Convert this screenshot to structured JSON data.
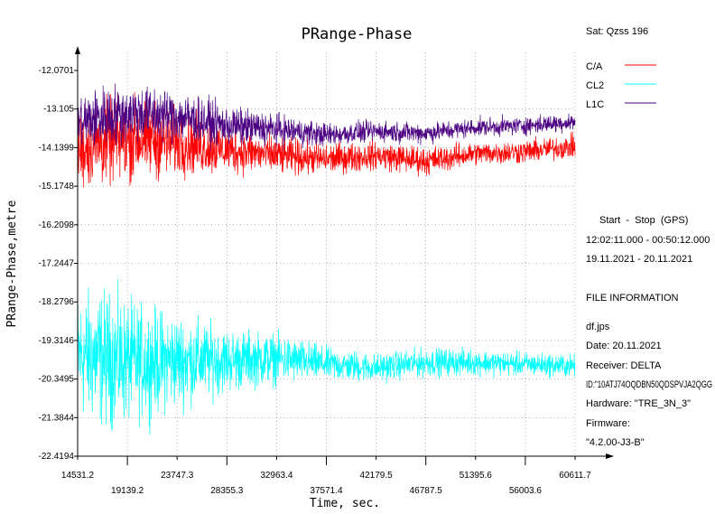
{
  "chart_data": {
    "type": "line",
    "title": "PRange-Phase",
    "xlabel": "Time, sec.",
    "ylabel": "PRange-Phase,metre",
    "xlim": [
      14531.2,
      60611.7
    ],
    "ylim": [
      -22.4194,
      -12.0701
    ],
    "x_ticks_upper": [
      "14531.2",
      "23747.3",
      "32963.4",
      "42179.5",
      "51395.6",
      "60611.7"
    ],
    "x_ticks_lower": [
      "19139.2",
      "28355.3",
      "37571.4",
      "46787.5",
      "56003.6"
    ],
    "y_ticks": [
      "-12.0701",
      "-13.105",
      "-14.1399",
      "-15.1748",
      "-16.2098",
      "-17.2447",
      "-18.2796",
      "-19.3146",
      "-20.3495",
      "-21.3844",
      "-22.4194"
    ],
    "grid": true,
    "legend_position": "top-right",
    "series": [
      {
        "name": "C/A",
        "color": "#ff0000",
        "x": [
          14531.2,
          17000,
          20000,
          23747.3,
          28355.3,
          32963.4,
          37571.4,
          42179.5,
          46787.5,
          51395.6,
          56003.6,
          60611.7
        ],
        "center": [
          -14.2,
          -14.0,
          -13.9,
          -14.0,
          -14.2,
          -14.35,
          -14.45,
          -14.35,
          -14.5,
          -14.3,
          -14.25,
          -14.1
        ],
        "amplitude": [
          1.5,
          1.6,
          1.6,
          1.3,
          0.9,
          0.75,
          0.6,
          0.55,
          0.55,
          0.45,
          0.45,
          0.45
        ]
      },
      {
        "name": "CL2",
        "color": "#00ffff",
        "x": [
          14531.2,
          17000,
          20000,
          23747.3,
          28355.3,
          32963.4,
          37571.4,
          42179.5,
          46787.5,
          51395.6,
          56003.6,
          60611.7
        ],
        "center": [
          -19.7,
          -19.8,
          -19.9,
          -19.85,
          -19.85,
          -19.8,
          -19.95,
          -20.05,
          -19.9,
          -19.9,
          -19.95,
          -20.0
        ],
        "amplitude": [
          2.4,
          2.6,
          2.2,
          1.8,
          1.2,
          0.95,
          0.65,
          0.55,
          0.55,
          0.5,
          0.45,
          0.45
        ]
      },
      {
        "name": "L1C",
        "color": "#4b0082",
        "x": [
          14531.2,
          17000,
          20000,
          23747.3,
          28355.3,
          32963.4,
          37571.4,
          42179.5,
          46787.5,
          51395.6,
          56003.6,
          60611.7
        ],
        "center": [
          -13.5,
          -13.3,
          -13.2,
          -13.3,
          -13.55,
          -13.65,
          -13.8,
          -13.7,
          -13.75,
          -13.6,
          -13.55,
          -13.45
        ],
        "amplitude": [
          1.1,
          1.2,
          1.1,
          1.0,
          0.75,
          0.6,
          0.45,
          0.4,
          0.4,
          0.35,
          0.35,
          0.35
        ]
      }
    ]
  },
  "info": {
    "satellite": "Sat: Qzss 196",
    "start_stop_label": "Start  -  Stop  (GPS)",
    "time_range": "12:02:11.000 - 00:50:12.000",
    "date_range": "19.11.2021 - 20.11.2021",
    "file_info_header": "FILE INFORMATION",
    "file_name": "df.jps",
    "date": "Date: 20.11.2021",
    "receiver": "Receiver: DELTA",
    "id": "ID:\"10ATJ74OQDBN50QDSPVJA2QGG",
    "hardware": "Hardware: \"TRE_3N_3\"",
    "firmware_label": "Firmware:",
    "firmware_value": "\"4.2.00-J3-B\""
  }
}
